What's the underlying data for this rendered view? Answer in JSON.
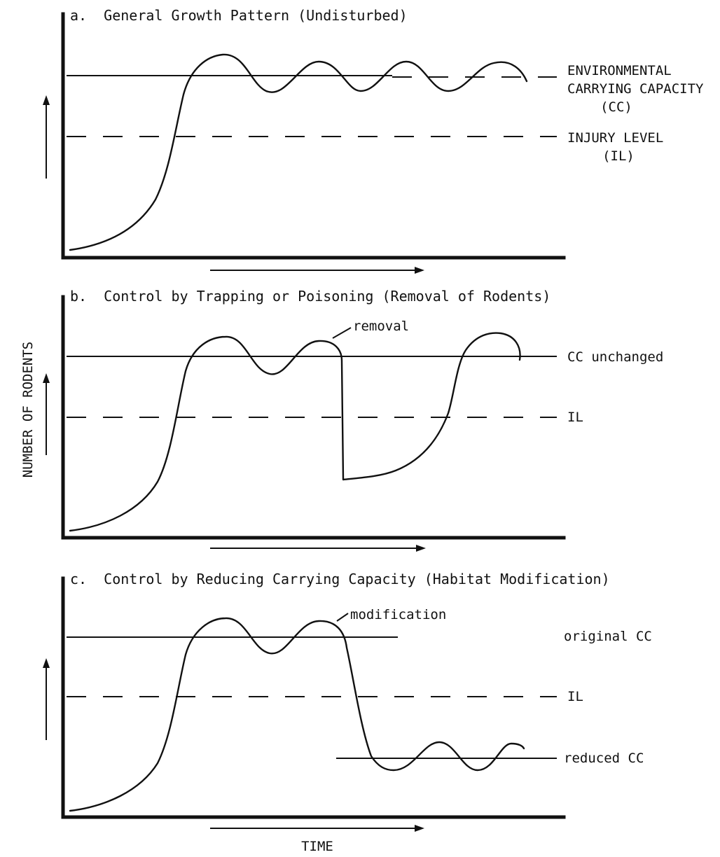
{
  "y_axis_label": "NUMBER OF RODENTS",
  "x_axis_label": "TIME",
  "panels": [
    {
      "title": "a.  General Growth Pattern (Undisturbed)",
      "lines": [
        {
          "key": "cc",
          "style": "solid-dashed",
          "label_lines": [
            "ENVIRONMENTAL",
            "CARRYING CAPACITY",
            "(CC)"
          ]
        },
        {
          "key": "il",
          "style": "dashed",
          "label_lines": [
            "INJURY LEVEL",
            "(IL)"
          ]
        }
      ],
      "annotation": ""
    },
    {
      "title": "b.  Control by Trapping or Poisoning (Removal of Rodents)",
      "lines": [
        {
          "key": "cc",
          "style": "solid",
          "label_lines": [
            "CC unchanged"
          ]
        },
        {
          "key": "il",
          "style": "dashed",
          "label_lines": [
            "IL"
          ]
        }
      ],
      "annotation": "removal"
    },
    {
      "title": "c.  Control by Reducing Carrying Capacity (Habitat Modification)",
      "lines": [
        {
          "key": "cc",
          "style": "solid",
          "label_lines": [
            "original CC"
          ]
        },
        {
          "key": "il",
          "style": "dashed",
          "label_lines": [
            "IL"
          ]
        },
        {
          "key": "reduced_cc",
          "style": "solid",
          "label_lines": [
            "reduced CC"
          ]
        }
      ],
      "annotation": "modification"
    }
  ]
}
